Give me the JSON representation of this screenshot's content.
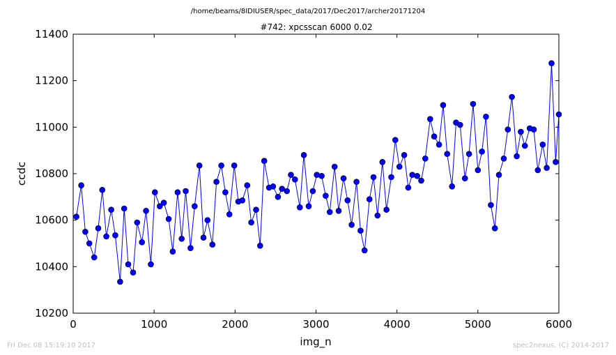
{
  "header": {
    "filepath": "/home/beams/8IDIUSER/spec_data/2017/Dec2017/archer20171204"
  },
  "footer": {
    "timestamp": "Fri Dec 08 15:19:10 2017",
    "credit": "spec2nexus, (C) 2014-2017"
  },
  "chart_data": {
    "type": "scatter",
    "title": "#742: xpcsscan 6000 0.02",
    "xlabel": "img_n",
    "ylabel": "ccdc",
    "xlim": [
      0,
      6000
    ],
    "ylim": [
      10200,
      11400
    ],
    "xticks": [
      0,
      1000,
      2000,
      3000,
      4000,
      5000,
      6000
    ],
    "yticks": [
      10200,
      10400,
      10600,
      10800,
      11000,
      11200,
      11400
    ],
    "grid": false,
    "legend": "none",
    "color": "#0000ff",
    "line_connected": true,
    "series": [
      {
        "x": [
          40,
          100,
          150,
          200,
          260,
          310,
          360,
          410,
          470,
          520,
          580,
          630,
          680,
          740,
          790,
          850,
          900,
          960,
          1010,
          1070,
          1120,
          1180,
          1230,
          1290,
          1340,
          1390,
          1450,
          1500,
          1560,
          1610,
          1660,
          1720,
          1770,
          1830,
          1880,
          1930,
          1990,
          2040,
          2090,
          2150,
          2200,
          2260,
          2310,
          2360,
          2420,
          2470,
          2530,
          2580,
          2640,
          2690,
          2740,
          2800,
          2850,
          2910,
          2960,
          3010,
          3070,
          3120,
          3170,
          3230,
          3280,
          3340,
          3390,
          3440,
          3500,
          3550,
          3600,
          3660,
          3710,
          3760,
          3820,
          3870,
          3930,
          3980,
          4030,
          4090,
          4140,
          4190,
          4250,
          4300,
          4350,
          4410,
          4460,
          4520,
          4570,
          4620,
          4680,
          4730,
          4780,
          4840,
          4890,
          4940,
          5000,
          5050,
          5100,
          5160,
          5210,
          5260,
          5320,
          5370,
          5420,
          5480,
          5530,
          5580,
          5640,
          5690,
          5740,
          5800,
          5850,
          5910,
          5960,
          6000
        ],
        "y": [
          10615,
          10750,
          10550,
          10500,
          10440,
          10565,
          10730,
          10530,
          10645,
          10535,
          10335,
          10650,
          10410,
          10375,
          10590,
          10505,
          10640,
          10410,
          10720,
          10660,
          10675,
          10605,
          10465,
          10720,
          10520,
          10725,
          10480,
          10660,
          10835,
          10525,
          10600,
          10495,
          10765,
          10835,
          10720,
          10625,
          10835,
          10680,
          10685,
          10750,
          10590,
          10645,
          10490,
          10855,
          10740,
          10745,
          10700,
          10735,
          10725,
          10795,
          10775,
          10655,
          10880,
          10660,
          10725,
          10795,
          10790,
          10705,
          10635,
          10830,
          10640,
          10780,
          10685,
          10580,
          10765,
          10555,
          10470,
          10690,
          10785,
          10620,
          10850,
          10645,
          10785,
          10945,
          10830,
          10880,
          10740,
          10795,
          10790,
          10770,
          10865,
          11035,
          10960,
          10925,
          11095,
          10885,
          10745,
          11020,
          11010,
          10780,
          10885,
          11100,
          10815,
          10895,
          11045,
          10665,
          10565,
          10795,
          10865,
          10990,
          11130,
          10875,
          10980,
          10920,
          10995,
          10990,
          10815,
          10925,
          10825,
          11275,
          10850,
          11055
        ]
      }
    ]
  }
}
